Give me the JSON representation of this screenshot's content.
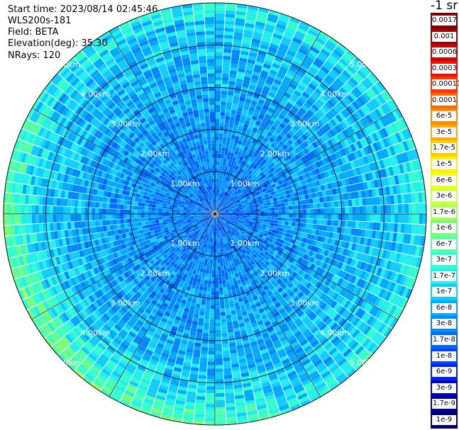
{
  "header": {
    "start_time": "Start time: 2023/08/14 02:45:46",
    "instrument": "WLS200s-181",
    "field": "Field: BETA",
    "elevation": "Elevation(deg): 35.30",
    "nrays": "NRays: 120"
  },
  "colorbar": {
    "unit": "-1 sr",
    "levels": [
      {
        "label": "0.0017",
        "color": "#7f0000"
      },
      {
        "label": "0.001",
        "color": "#a50000"
      },
      {
        "label": "0.0006",
        "color": "#cc0000"
      },
      {
        "label": "0.0003",
        "color": "#ee1100"
      },
      {
        "label": "0.00017",
        "color": "#ff3300"
      },
      {
        "label": "0.0001",
        "color": "#ff6600"
      },
      {
        "label": "6e-5",
        "color": "#ff8c00"
      },
      {
        "label": "3e-5",
        "color": "#ffaa00"
      },
      {
        "label": "1.7e-5",
        "color": "#ffcc00"
      },
      {
        "label": "1e-5",
        "color": "#ffee00"
      },
      {
        "label": "6e-6",
        "color": "#eeff22"
      },
      {
        "label": "3e-6",
        "color": "#ccff44"
      },
      {
        "label": "1.7e-6",
        "color": "#aaff55"
      },
      {
        "label": "1e-6",
        "color": "#77ff77"
      },
      {
        "label": "6e-7",
        "color": "#55ffaa"
      },
      {
        "label": "3e-7",
        "color": "#33ffcc"
      },
      {
        "label": "1.7e-7",
        "color": "#22eeee"
      },
      {
        "label": "1e-7",
        "color": "#11ccff"
      },
      {
        "label": "6e-8",
        "color": "#00aaff"
      },
      {
        "label": "3e-8",
        "color": "#0088ff"
      },
      {
        "label": "1.7e-8",
        "color": "#0066ff"
      },
      {
        "label": "1e-8",
        "color": "#0044ff"
      },
      {
        "label": "6e-9",
        "color": "#0022ee"
      },
      {
        "label": "3e-9",
        "color": "#0000cc"
      },
      {
        "label": "1.7e-9",
        "color": "#000099"
      },
      {
        "label": "1e-9",
        "color": "#000066"
      }
    ]
  },
  "range_rings": [
    "1.00km",
    "2.00km",
    "3.00km",
    "4.00km",
    "5.00km"
  ]
}
